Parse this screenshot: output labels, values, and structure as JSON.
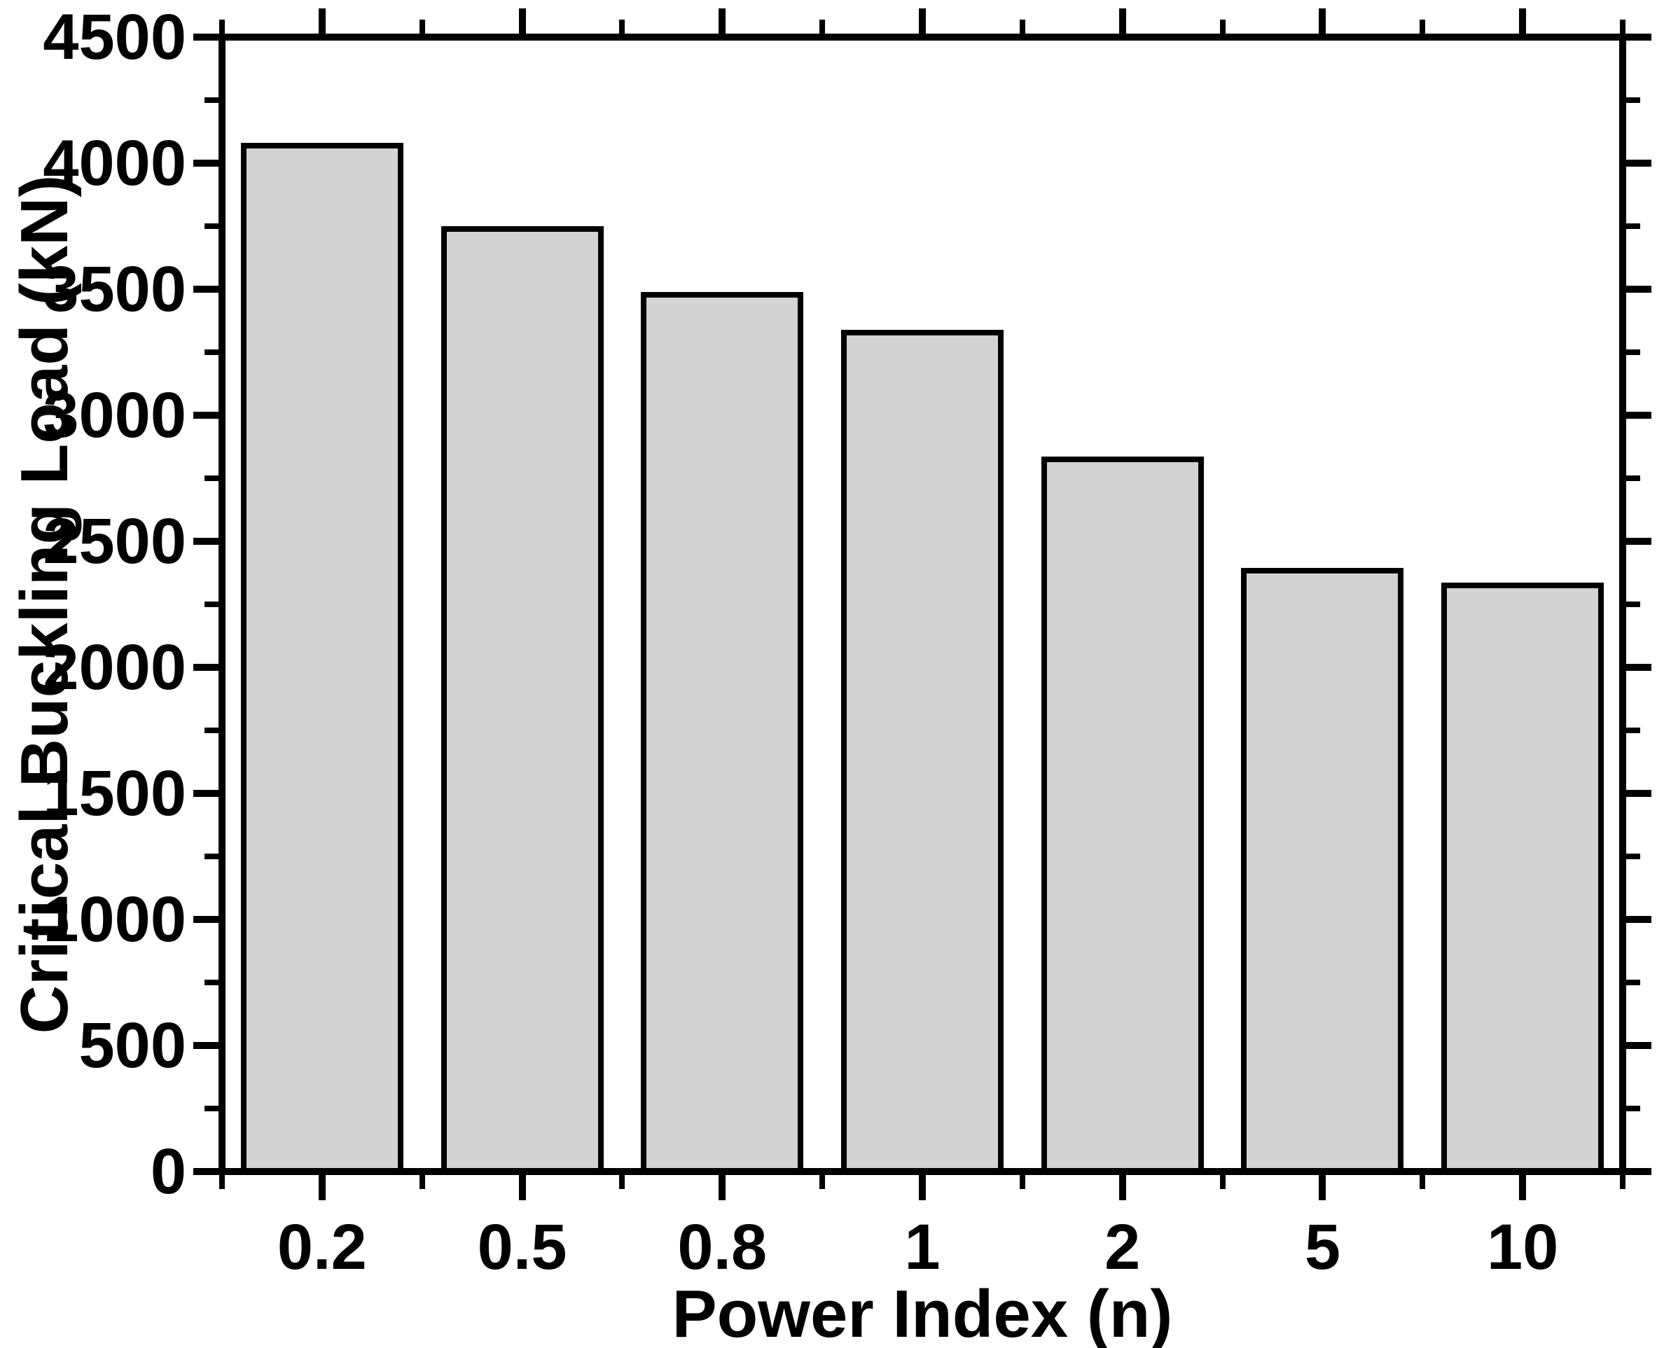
{
  "chart_data": {
    "type": "bar",
    "title": "",
    "xlabel": "Power Index (n)",
    "ylabel": "Critical Buckling Load (kN)",
    "categories": [
      "0.2",
      "0.5",
      "0.8",
      "1",
      "2",
      "5",
      "10"
    ],
    "values": [
      4080,
      3750,
      3490,
      3340,
      2835,
      2395,
      2335
    ],
    "ylim": [
      0,
      4500
    ],
    "y_major_ticks": [
      0,
      500,
      1000,
      1500,
      2000,
      2500,
      3000,
      3500,
      4000,
      4500
    ],
    "y_major_tick_labels": [
      "0",
      "500",
      "1000",
      "1500",
      "2000",
      "2500",
      "3000",
      "3500",
      "4000",
      "4500"
    ],
    "y_minor_tick_step": 250,
    "grid": false,
    "legend_position": "none",
    "bar_fill_color": "#d3d3d3",
    "bar_border_color": "#000000",
    "axis_color": "#000000",
    "background_color": "#ffffff",
    "tick_style": "outward, mirrored on top and right spines; major ticks at category centers, minor ticks at category boundaries"
  }
}
